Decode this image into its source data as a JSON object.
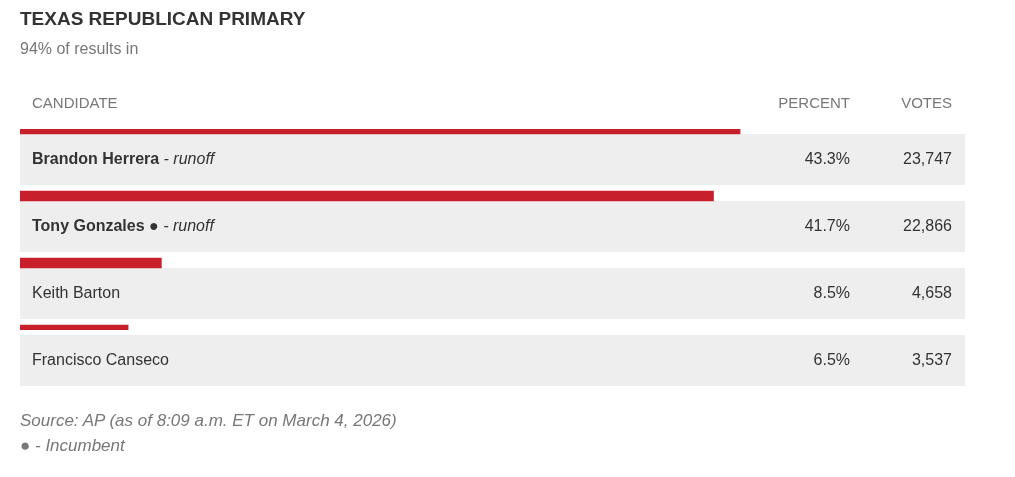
{
  "chart_data": {
    "type": "bar",
    "orientation": "horizontal",
    "title": "TEXAS REPUBLICAN PRIMARY",
    "subtitle": "94% of results in",
    "ylabel": "CANDIDATE",
    "xlabel": "PERCENT",
    "categories": [
      "Brandon Herrera - runoff",
      "Tony Gonzales ● - runoff",
      "Keith Barton",
      "Francisco Canseco"
    ],
    "values": [
      43.3,
      41.7,
      8.5,
      6.5
    ],
    "color": "#c8202a",
    "value_labels": [
      "43.3%",
      "41.7%",
      "8.5%",
      "6.5%"
    ],
    "annotations": [
      "VOTES",
      "23,747",
      "22,866",
      "4,658",
      "3,537",
      "Source: AP (as of 8:09 a.m. ET on March 4, 2026)",
      "● - Incumbent"
    ],
    "legend": false,
    "tick_labels": "y"
  }
}
